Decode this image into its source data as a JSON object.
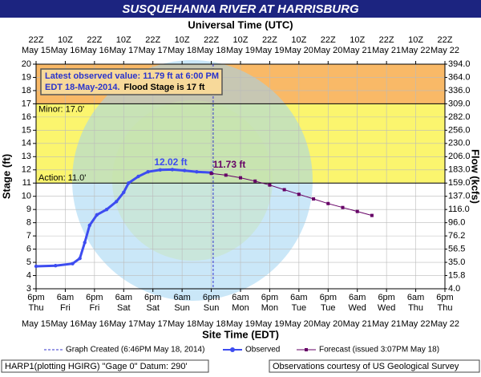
{
  "chart_data": {
    "type": "hydrograph",
    "title": "SUSQUEHANNA RIVER AT HARRISBURG",
    "x2_title": "Universal Time (UTC)",
    "x_title": "Site Time (EDT)",
    "y_title": "Stage (ft)",
    "y2_title": "Flow (kcfs)",
    "xlim": [
      "2014-05-15T18:00",
      "2014-05-22T18:00"
    ],
    "xticks": [
      {
        "value": "2014-05-15T18:00",
        "label": "6pm"
      },
      {
        "value": "2014-05-16T06:00",
        "label": "6am"
      },
      {
        "value": "2014-05-16T18:00",
        "label": "6pm"
      },
      {
        "value": "2014-05-17T06:00",
        "label": "6am"
      },
      {
        "value": "2014-05-17T18:00",
        "label": "6pm"
      },
      {
        "value": "2014-05-18T06:00",
        "label": "6am"
      },
      {
        "value": "2014-05-18T18:00",
        "label": "6pm"
      },
      {
        "value": "2014-05-19T06:00",
        "label": "6am"
      },
      {
        "value": "2014-05-19T18:00",
        "label": "6pm"
      },
      {
        "value": "2014-05-20T06:00",
        "label": "6am"
      },
      {
        "value": "2014-05-20T18:00",
        "label": "6pm"
      },
      {
        "value": "2014-05-21T06:00",
        "label": "6am"
      },
      {
        "value": "2014-05-21T18:00",
        "label": "6pm"
      },
      {
        "value": "2014-05-22T06:00",
        "label": "6am"
      },
      {
        "value": "2014-05-22T18:00",
        "label": "6pm"
      }
    ],
    "xtick_days": [
      "Thu",
      "Fri",
      "Fri",
      "Sat",
      "Sat",
      "Sun",
      "Sun",
      "Mon",
      "Mon",
      "Tue",
      "Tue",
      "Wed",
      "Wed",
      "Thu",
      "Thu"
    ],
    "xtick_dates": [
      "May 15",
      "May 16",
      "May 16",
      "May 17",
      "May 17",
      "May 18",
      "May 18",
      "May 19",
      "May 19",
      "May 20",
      "May 20",
      "May 21",
      "May 21",
      "May 22",
      "May 22"
    ],
    "x2ticks": [
      "22Z",
      "10Z",
      "22Z",
      "10Z",
      "22Z",
      "10Z",
      "22Z",
      "10Z",
      "22Z",
      "10Z",
      "22Z",
      "10Z",
      "22Z",
      "10Z",
      "22Z"
    ],
    "x2tick_dates": [
      "May 15",
      "May 16",
      "May 16",
      "May 17",
      "May 17",
      "May 18",
      "May 18",
      "May 19",
      "May 19",
      "May 20",
      "May 20",
      "May 21",
      "May 21",
      "May 22",
      "May 22"
    ],
    "ylim": [
      3,
      20
    ],
    "yticks": [
      3,
      4,
      5,
      6,
      7,
      8,
      9,
      10,
      11,
      12,
      13,
      14,
      15,
      16,
      17,
      18,
      19,
      20
    ],
    "y2ticks": [
      {
        "value": 4,
        "label": "4.0"
      },
      {
        "value": 15.8,
        "label": "15.8"
      },
      {
        "value": 35,
        "label": "35.0"
      },
      {
        "value": 56.5,
        "label": "56.5"
      },
      {
        "value": 76.2,
        "label": "76.2"
      },
      {
        "value": 96,
        "label": "96.0"
      },
      {
        "value": 116,
        "label": "116.0"
      },
      {
        "value": 137,
        "label": "137.0"
      },
      {
        "value": 159,
        "label": "159.0"
      },
      {
        "value": 183,
        "label": "183.0"
      },
      {
        "value": 206,
        "label": "206.0"
      },
      {
        "value": 230,
        "label": "230.0"
      },
      {
        "value": 256,
        "label": "256.0"
      },
      {
        "value": 282,
        "label": "282.0"
      },
      {
        "value": 309,
        "label": "309.0"
      },
      {
        "value": 336,
        "label": "336.0"
      },
      {
        "value": 364,
        "label": "364.0"
      },
      {
        "value": 394,
        "label": "394.0"
      }
    ],
    "grid": true,
    "thresholds": [
      {
        "label": "Minor: 17.0'",
        "value": 17,
        "color": "#f9b967"
      },
      {
        "label": "Action: 11.0'",
        "value": 11,
        "color": "#fbf56e"
      }
    ],
    "created": {
      "label": "Graph Created (6:46PM May 18, 2014)",
      "x": "2014-05-18T18:46",
      "color": "#3333cc"
    },
    "series": [
      {
        "name": "Observed",
        "color": "#3d4cf0",
        "x": [
          "2014-05-15T18:00",
          "2014-05-16T02:00",
          "2014-05-16T09:00",
          "2014-05-16T12:00",
          "2014-05-16T14:00",
          "2014-05-16T16:00",
          "2014-05-16T19:00",
          "2014-05-16T23:00",
          "2014-05-17T03:00",
          "2014-05-17T06:00",
          "2014-05-17T08:00",
          "2014-05-17T12:00",
          "2014-05-17T16:00",
          "2014-05-17T21:00",
          "2014-05-18T02:00",
          "2014-05-18T07:00",
          "2014-05-18T12:00",
          "2014-05-18T18:00"
        ],
        "values": [
          4.7,
          4.75,
          4.9,
          5.3,
          6.5,
          7.8,
          8.6,
          9.0,
          9.6,
          10.3,
          11.0,
          11.5,
          11.85,
          12.0,
          12.02,
          11.95,
          11.85,
          11.79
        ]
      },
      {
        "name": "Forecast (issued 3:07PM May 18)",
        "color": "#660066",
        "x": [
          "2014-05-18T18:00",
          "2014-05-19T00:00",
          "2014-05-19T06:00",
          "2014-05-19T12:00",
          "2014-05-19T18:00",
          "2014-05-20T00:00",
          "2014-05-20T06:00",
          "2014-05-20T12:00",
          "2014-05-20T18:00",
          "2014-05-21T00:00",
          "2014-05-21T06:00",
          "2014-05-21T12:00"
        ],
        "values": [
          11.73,
          11.6,
          11.4,
          11.15,
          10.85,
          10.5,
          10.15,
          9.8,
          9.45,
          9.15,
          8.85,
          8.55
        ]
      }
    ],
    "annotations": [
      "12.02 ft",
      "11.73 ft"
    ],
    "info_box": [
      "Latest observed value: 11.79 ft at 6:00 PM",
      "EDT 18-May-2014.",
      "Flood Stage is 17 ft"
    ],
    "footer_left": "HARP1(plotting HGIRG) \"Gage 0\" Datum: 290'",
    "footer_right": "Observations courtesy of US Geological Survey"
  }
}
